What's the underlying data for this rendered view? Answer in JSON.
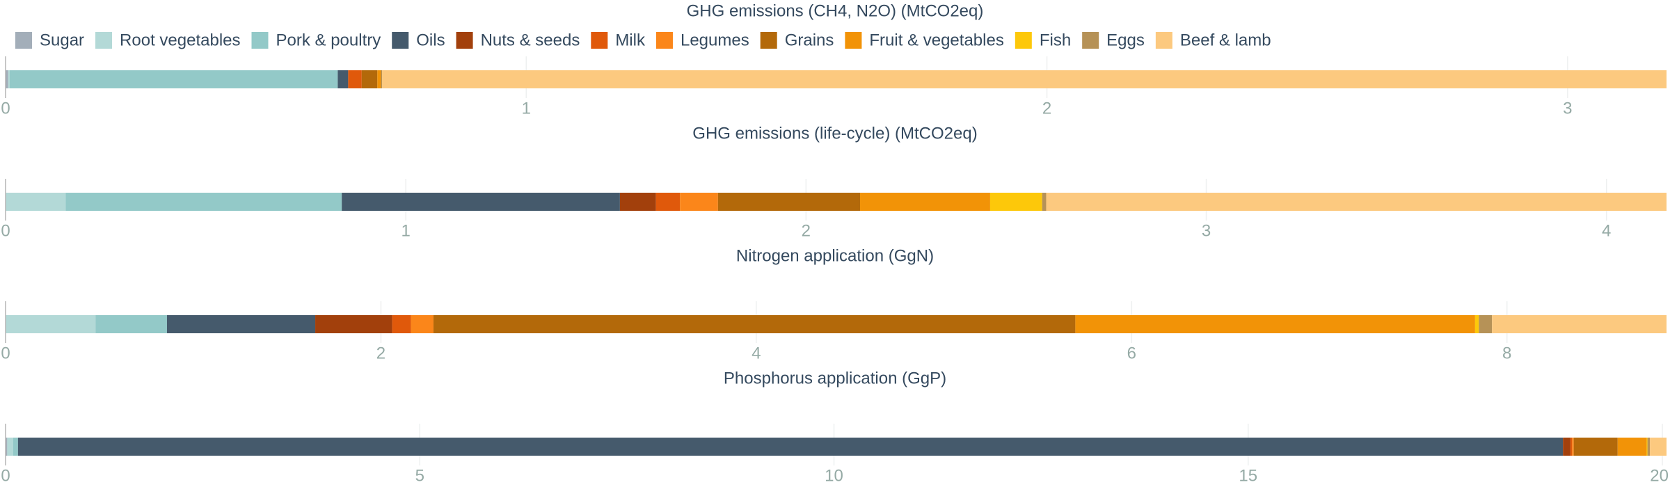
{
  "chart_data": {
    "type": "bar",
    "stacked": true,
    "orientation": "horizontal",
    "legend_placement": "top",
    "grid": true,
    "legend": [
      {
        "name": "Sugar",
        "color": "#a3aeb9"
      },
      {
        "name": "Root vegetables",
        "color": "#b3d9d7"
      },
      {
        "name": "Pork & poultry",
        "color": "#93c9c8"
      },
      {
        "name": "Oils",
        "color": "#455a6c"
      },
      {
        "name": "Nuts & seeds",
        "color": "#a2400c"
      },
      {
        "name": "Milk",
        "color": "#e0590b"
      },
      {
        "name": "Legumes",
        "color": "#fb861a"
      },
      {
        "name": "Grains",
        "color": "#b3690a"
      },
      {
        "name": "Fruit & vegetables",
        "color": "#f29307"
      },
      {
        "name": "Fish",
        "color": "#fdc80a"
      },
      {
        "name": "Eggs",
        "color": "#b69257"
      },
      {
        "name": "Beef & lamb",
        "color": "#fcc97f"
      }
    ],
    "panels": [
      {
        "title": "GHG emissions (CH4, N2O) (MtCO2eq)",
        "xlim": [
          0,
          3.19
        ],
        "ticks": [
          0,
          1,
          2,
          3
        ],
        "tick_labels": [
          "0",
          "1",
          "2",
          "3"
        ],
        "values": {
          "Sugar": 0.005,
          "Root vegetables": 0.003,
          "Pork & poultry": 0.63,
          "Oils": 0.02,
          "Nuts & seeds": 0.0,
          "Milk": 0.026,
          "Legumes": 0.0,
          "Grains": 0.03,
          "Fruit & vegetables": 0.007,
          "Fish": 0.0,
          "Eggs": 0.002,
          "Beef & lamb": 2.467
        }
      },
      {
        "title": "GHG emissions (life-cycle) (MtCO2eq)",
        "xlim": [
          0,
          4.15
        ],
        "ticks": [
          0,
          1,
          2,
          3,
          4
        ],
        "tick_labels": [
          "0",
          "1",
          "2",
          "3",
          "4"
        ],
        "values": {
          "Sugar": 0.0,
          "Root vegetables": 0.15,
          "Pork & poultry": 0.69,
          "Oils": 0.695,
          "Nuts & seeds": 0.09,
          "Milk": 0.06,
          "Legumes": 0.095,
          "Grains": 0.355,
          "Fruit & vegetables": 0.325,
          "Fish": 0.13,
          "Eggs": 0.01,
          "Beef & lamb": 1.55
        }
      },
      {
        "title": "Nitrogen application (GgN)",
        "xlim": [
          0,
          8.85
        ],
        "ticks": [
          0,
          2,
          4,
          6,
          8
        ],
        "tick_labels": [
          "0",
          "2",
          "4",
          "6",
          "8"
        ],
        "values": {
          "Sugar": 0.0,
          "Root vegetables": 0.48,
          "Pork & poultry": 0.38,
          "Oils": 0.79,
          "Nuts & seeds": 0.41,
          "Milk": 0.1,
          "Legumes": 0.12,
          "Grains": 3.42,
          "Fruit & vegetables": 2.13,
          "Fish": 0.02,
          "Eggs": 0.07,
          "Beef & lamb": 0.93
        }
      },
      {
        "title": "Phosphorus application (GgP)",
        "xlim": [
          0,
          20.05
        ],
        "ticks": [
          0,
          5,
          10,
          15,
          20
        ],
        "tick_labels": [
          "0",
          "5",
          "10",
          "15",
          "20"
        ],
        "values": {
          "Sugar": 0.02,
          "Root vegetables": 0.07,
          "Pork & poultry": 0.06,
          "Oils": 18.65,
          "Nuts & seeds": 0.09,
          "Milk": 0.02,
          "Legumes": 0.02,
          "Grains": 0.53,
          "Fruit & vegetables": 0.35,
          "Fish": 0.01,
          "Eggs": 0.03,
          "Beef & lamb": 0.2
        }
      }
    ]
  }
}
